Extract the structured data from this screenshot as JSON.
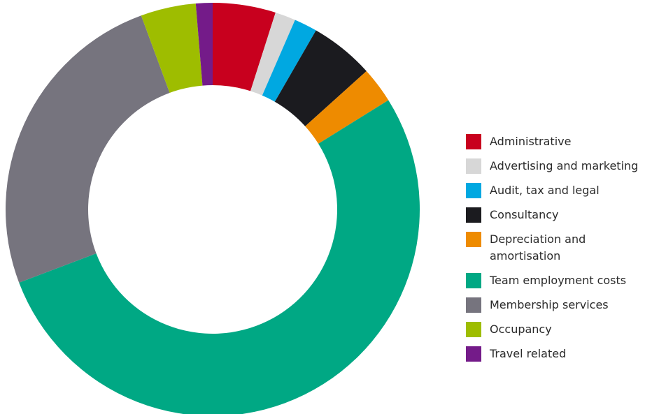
{
  "chart_data": {
    "type": "pie",
    "title": "",
    "style": "donut",
    "categories": [
      "Administrative",
      "Advertising and marketing",
      "Audit, tax and legal",
      "Consultancy",
      "Depreciation and amortisation",
      "Team employment costs",
      "Membership services",
      "Occupancy",
      "Travel related"
    ],
    "values": [
      4.9,
      1.6,
      1.8,
      5.0,
      2.8,
      53.0,
      25.1,
      4.3,
      1.3
    ],
    "value_unit": "percent (estimated share of total)",
    "colors": [
      "#c8001e",
      "#d7d7d7",
      "#00a8e1",
      "#1b1b1f",
      "#ee8b00",
      "#00a884",
      "#76747e",
      "#9ebd00",
      "#741b89"
    ],
    "start_angle": "top (12 o'clock), clockwise",
    "legend_position": "right"
  }
}
